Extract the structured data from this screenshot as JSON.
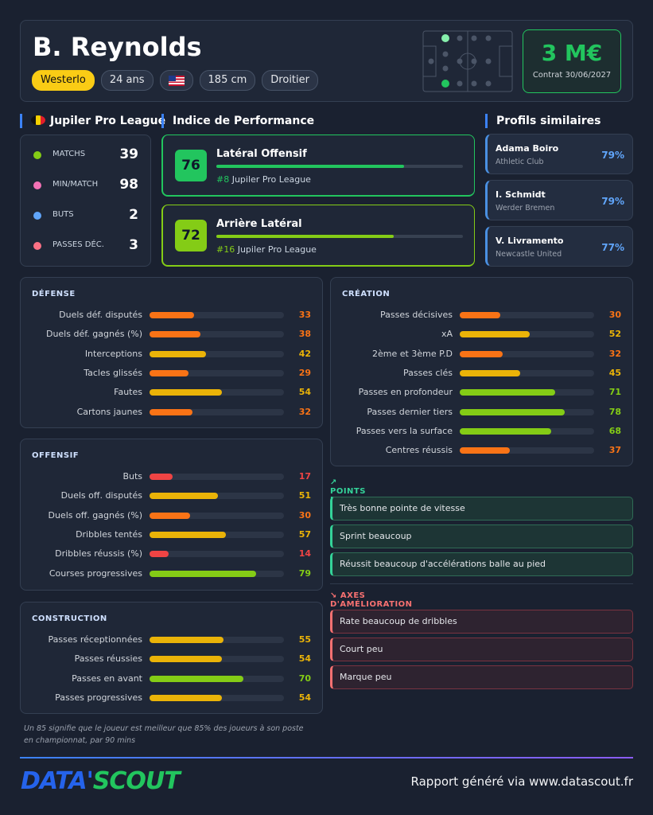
{
  "header": {
    "name": "B. Reynolds",
    "tags": [
      "Westerlo",
      "24 ans",
      "185 cm",
      "Droitier"
    ],
    "market_value": "3 M€",
    "contract": "Contrat 30/06/2027"
  },
  "league": {
    "title": "Jupiler Pro League",
    "stats": [
      {
        "label": "MATCHS",
        "value": 39
      },
      {
        "label": "MIN/MATCH",
        "value": 98
      },
      {
        "label": "BUTS",
        "value": 2
      },
      {
        "label": "PASSES DÉC.",
        "value": 3
      }
    ]
  },
  "performance": {
    "title": "Indice de Performance",
    "items": [
      {
        "score": 76,
        "role": "Latéral Offensif",
        "rank": "#8",
        "league": "Jupiler Pro League",
        "color": "#22c55e"
      },
      {
        "score": 72,
        "role": "Arrière Latéral",
        "rank": "#16",
        "league": "Jupiler Pro League",
        "color": "#84cc16"
      }
    ]
  },
  "similar": {
    "title": "Profils similaires",
    "profiles": [
      {
        "name": "Adama Boiro",
        "club": "Athletic Club",
        "match": "79%"
      },
      {
        "name": "I. Schmidt",
        "club": "Werder Bremen",
        "match": "79%"
      },
      {
        "name": "V. Livramento",
        "club": "Newcastle United",
        "match": "77%"
      }
    ]
  },
  "sections": [
    {
      "title": "DÉFENSE",
      "stats": [
        {
          "label": "Duels déf. disputés",
          "value": 33
        },
        {
          "label": "Duels déf. gagnés (%)",
          "value": 38
        },
        {
          "label": "Interceptions",
          "value": 42
        },
        {
          "label": "Tacles glissés",
          "value": 29
        },
        {
          "label": "Fautes",
          "value": 54
        },
        {
          "label": "Cartons jaunes",
          "value": 32
        }
      ]
    },
    {
      "title": "OFFENSIF",
      "stats": [
        {
          "label": "Buts",
          "value": 17
        },
        {
          "label": "Duels off. disputés",
          "value": 51
        },
        {
          "label": "Duels off. gagnés (%)",
          "value": 30
        },
        {
          "label": "Dribbles tentés",
          "value": 57
        },
        {
          "label": "Dribbles réussis (%)",
          "value": 14
        },
        {
          "label": "Courses progressives",
          "value": 79
        }
      ]
    },
    {
      "title": "CONSTRUCTION",
      "stats": [
        {
          "label": "Passes réceptionnées",
          "value": 55
        },
        {
          "label": "Passes réussies",
          "value": 54
        },
        {
          "label": "Passes en avant",
          "value": 70
        },
        {
          "label": "Passes progressives",
          "value": 54
        }
      ]
    },
    {
      "title": "CRÉATION",
      "stats": [
        {
          "label": "Passes décisives",
          "value": 30
        },
        {
          "label": "xA",
          "value": 52
        },
        {
          "label": "2ème et 3ème P.D",
          "value": 32
        },
        {
          "label": "Passes clés",
          "value": 45
        },
        {
          "label": "Passes en profondeur",
          "value": 71
        },
        {
          "label": "Passes dernier tiers",
          "value": 78
        },
        {
          "label": "Passes vers la surface",
          "value": 68
        },
        {
          "label": "Centres réussis",
          "value": 37
        }
      ]
    }
  ],
  "strengths": {
    "title": "POINTS FORTS",
    "items": [
      "Très bonne pointe de vitesse",
      "Sprint beaucoup",
      "Réussit beaucoup d'accélérations balle au pied"
    ]
  },
  "improvements": {
    "title": "AXES D'AMÉLIORATION",
    "items": [
      "Rate beaucoup de dribbles",
      "Court peu",
      "Marque peu"
    ]
  },
  "note": "Un 85 signifie que le joueur est meilleur que 85% des joueurs à son poste en championnat, par 90 mins",
  "footer": {
    "logo_left": "DATA'",
    "logo_right": "SCOUT",
    "credit": "Rapport généré via www.datascout.fr"
  }
}
